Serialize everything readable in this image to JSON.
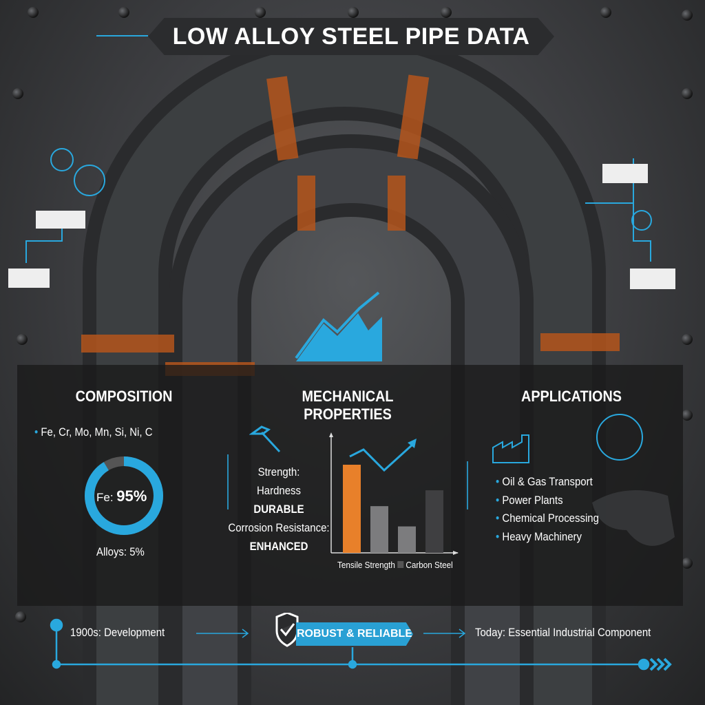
{
  "title": "LOW ALLOY STEEL PIPE DATA",
  "composition": {
    "heading": "COMPOSITION",
    "elements": "Fe, Cr, Mo, Mn, Si, Ni, C",
    "donut_label": "Fe:",
    "donut_value": "95%",
    "fe_percent": 95,
    "alloys": "Alloys: 5%"
  },
  "mechanical": {
    "heading": "MECHANICAL PROPERTIES",
    "lines": [
      "Strength:",
      "Hardness",
      "DURABLE",
      "Corrosion Resistance:",
      "ENHANCED"
    ]
  },
  "applications": {
    "heading": "APPLICATIONS",
    "items": [
      "Oil & Gas Transport",
      "Power Plants",
      "Chemical Processing",
      "Heavy Machinery"
    ]
  },
  "chart_data": {
    "type": "bar",
    "values": [
      100,
      53,
      30,
      71
    ],
    "legend": [
      "Tensile Strength",
      "Carbon Steel"
    ],
    "colors": [
      "#e8802a",
      "#7c7c7e",
      "#7c7c7e",
      "#3f3f41"
    ]
  },
  "timeline": {
    "start": "1900s: Development",
    "badge": "ROBUST & RELIABLE",
    "end": "Today: Essential Industrial Component"
  },
  "colors": {
    "accent": "#29a8de",
    "orange": "#e8802a"
  }
}
